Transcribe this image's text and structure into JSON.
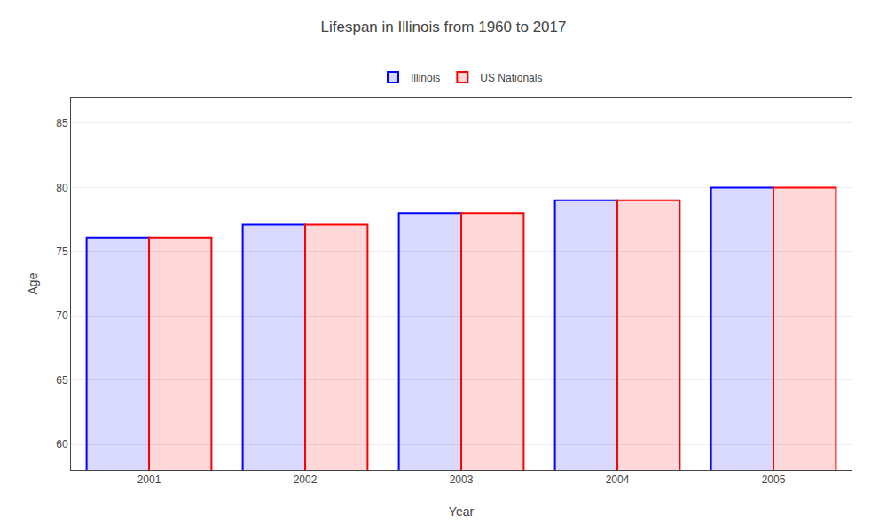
{
  "chart_data": {
    "type": "bar",
    "title": "Lifespan in Illinois from 1960 to 2017",
    "x_label": "Year",
    "y_label": "Age",
    "categories": [
      "2001",
      "2002",
      "2003",
      "2004",
      "2005"
    ],
    "series": [
      {
        "name": "Illinois",
        "color": "#0000ff",
        "values": [
          76.1,
          77.1,
          78.0,
          79.0,
          80.0
        ]
      },
      {
        "name": "US Nationals",
        "color": "#ff0000",
        "values": [
          76.1,
          77.1,
          78.0,
          79.0,
          80.0
        ]
      }
    ],
    "ylim": [
      58,
      87
    ],
    "yticks": [
      60,
      65,
      70,
      75,
      80,
      85
    ],
    "grid": true,
    "legend": "top"
  }
}
